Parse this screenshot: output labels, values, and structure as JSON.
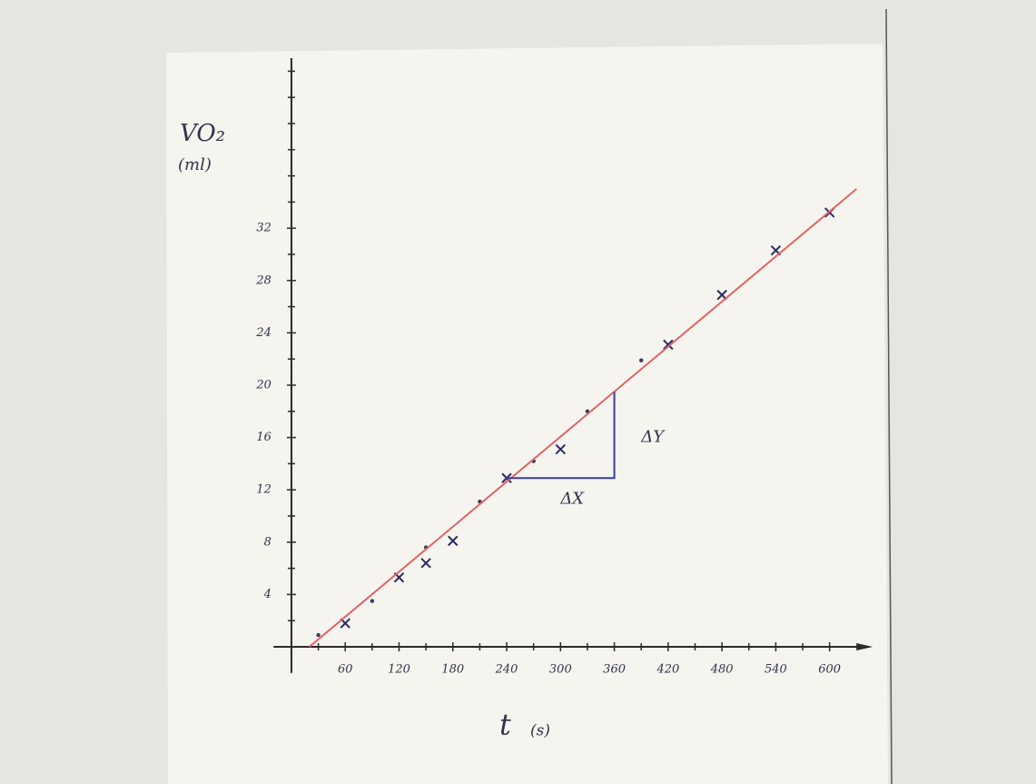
{
  "chart_data": {
    "type": "scatter",
    "y_label": "VO₂",
    "y_unit": "(ml)",
    "x_label": "t",
    "x_unit": "(s)",
    "xlim": [
      -20,
      640
    ],
    "ylim": [
      -2,
      45
    ],
    "xticks": [
      60,
      120,
      180,
      240,
      300,
      360,
      420,
      480,
      540,
      600
    ],
    "yticks": [
      4,
      8,
      12,
      16,
      20,
      24,
      28,
      32
    ],
    "xminor": [
      30,
      90,
      150,
      210,
      270,
      330,
      390,
      450,
      510,
      570
    ],
    "yminor": [
      2,
      6,
      10,
      14,
      18,
      22,
      26,
      30,
      34,
      36,
      38,
      40,
      42,
      44
    ],
    "series": [
      {
        "marker": "x",
        "color": "#2b2b5e",
        "x": [
          60,
          120,
          150,
          180,
          240,
          300,
          420,
          480,
          540,
          600
        ],
        "values": [
          1.8,
          5.3,
          6.4,
          8.1,
          12.9,
          15.1,
          23.1,
          26.9,
          30.3,
          33.2
        ]
      },
      {
        "marker": "dot",
        "color": "#3a3a55",
        "x": [
          30,
          90,
          150,
          210,
          270,
          330,
          390
        ],
        "values": [
          0.9,
          3.5,
          7.6,
          11.1,
          14.2,
          18.0,
          21.9
        ]
      },
      {
        "marker": "line",
        "color": "#e06464",
        "x": [
          20,
          630
        ],
        "values": [
          0,
          35
        ]
      },
      {
        "marker": "line",
        "color": "#3c3c9c",
        "x": [
          240,
          360,
          360
        ],
        "values": [
          12.9,
          12.9,
          19.5
        ]
      }
    ],
    "annotations": [
      {
        "text": "ΔX",
        "x": 300,
        "y": 11.3
      },
      {
        "text": "ΔY",
        "x": 390,
        "y": 16.0
      }
    ]
  }
}
